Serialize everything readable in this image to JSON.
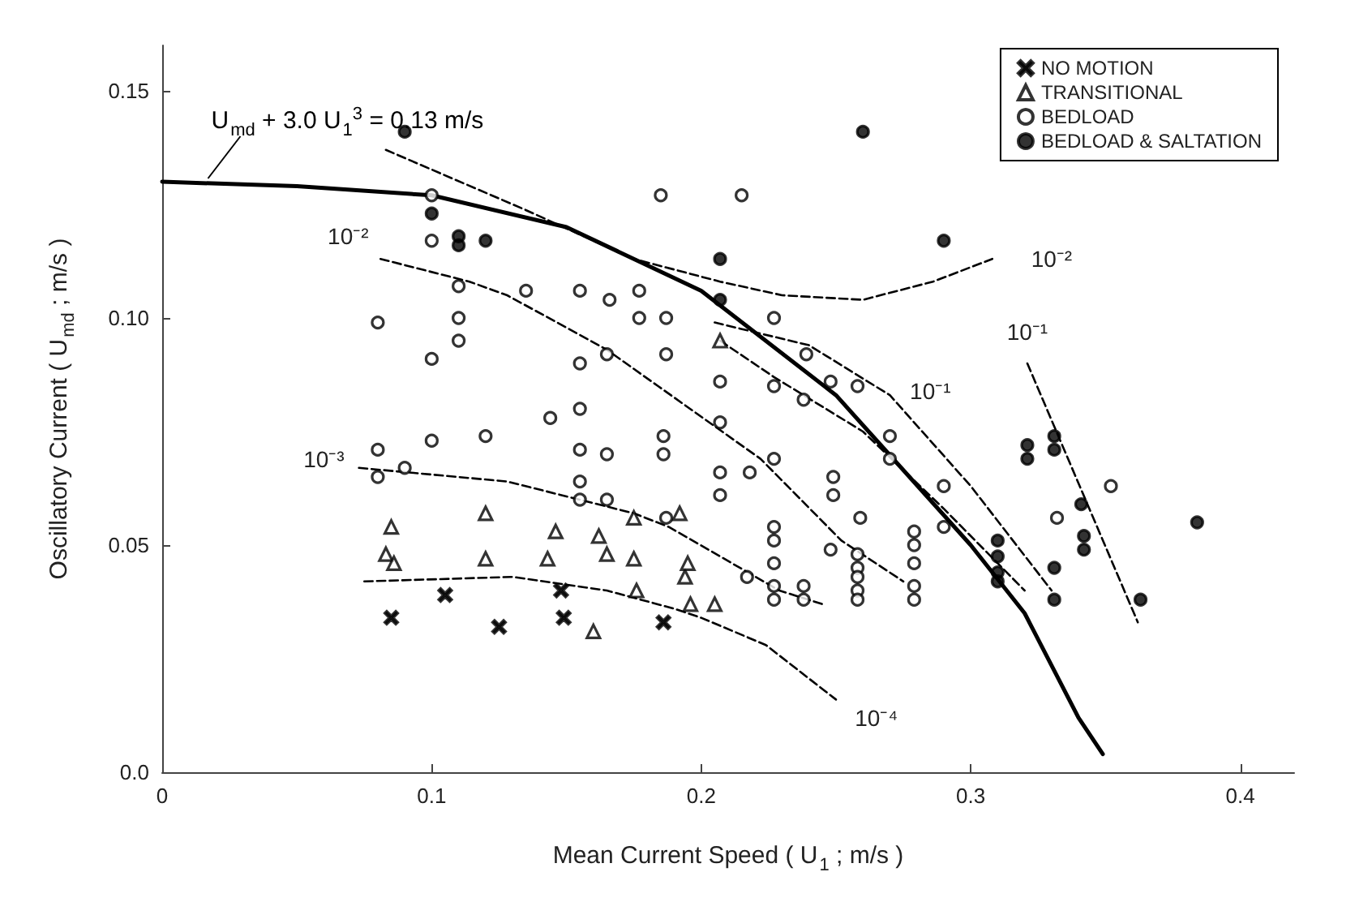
{
  "chart_data": {
    "type": "scatter",
    "xlabel": "Mean Current Speed ( U$_{1}$ ; m/s )",
    "ylabel": "Oscillatory Current ( U$_{md}$ ; m/s )",
    "xlim": [
      0,
      0.42
    ],
    "xticks": [
      0,
      0.1,
      0.2,
      0.3,
      0.4
    ],
    "ylim": [
      0,
      0.16
    ],
    "yticks": [
      {
        "value": 0,
        "label": "0.0"
      },
      0.05,
      {
        "value": 0.1,
        "label": "0.10"
      },
      0.15
    ],
    "grid": false,
    "legend": "top right",
    "series": [
      {
        "name": "NO MOTION",
        "marker": "cross",
        "color": "#000000",
        "x": [
          0.085,
          0.105,
          0.125,
          0.148,
          0.149,
          0.186
        ],
        "values": [
          0.034,
          0.039,
          0.032,
          0.04,
          0.034,
          0.033
        ]
      },
      {
        "name": "TRANSITIONAL",
        "marker": "triangle",
        "color": "#ffffff",
        "x": [
          0.085,
          0.083,
          0.086,
          0.12,
          0.12,
          0.143,
          0.146,
          0.16,
          0.162,
          0.165,
          0.175,
          0.175,
          0.176,
          0.192,
          0.194,
          0.195,
          0.196,
          0.205,
          0.207
        ],
        "values": [
          0.054,
          0.048,
          0.046,
          0.057,
          0.047,
          0.047,
          0.053,
          0.031,
          0.052,
          0.048,
          0.056,
          0.047,
          0.04,
          0.057,
          0.043,
          0.046,
          0.037,
          0.037,
          0.095
        ]
      },
      {
        "name": "BEDLOAD",
        "marker": "circle",
        "color": "#ffffff",
        "x": [
          0.1,
          0.1,
          0.11,
          0.08,
          0.11,
          0.11,
          0.1,
          0.08,
          0.1,
          0.12,
          0.08,
          0.09,
          0.185,
          0.215,
          0.135,
          0.155,
          0.166,
          0.177,
          0.177,
          0.187,
          0.187,
          0.155,
          0.165,
          0.207,
          0.227,
          0.227,
          0.144,
          0.155,
          0.207,
          0.155,
          0.165,
          0.186,
          0.186,
          0.207,
          0.218,
          0.227,
          0.155,
          0.155,
          0.165,
          0.207,
          0.187,
          0.217,
          0.227,
          0.227,
          0.227,
          0.227,
          0.227,
          0.239,
          0.248,
          0.258,
          0.238,
          0.27,
          0.27,
          0.249,
          0.249,
          0.29,
          0.259,
          0.29,
          0.248,
          0.258,
          0.258,
          0.258,
          0.258,
          0.258,
          0.238,
          0.238,
          0.279,
          0.279,
          0.279,
          0.279,
          0.279,
          0.332,
          0.352
        ],
        "values": [
          0.127,
          0.117,
          0.107,
          0.099,
          0.1,
          0.095,
          0.091,
          0.071,
          0.073,
          0.074,
          0.065,
          0.067,
          0.127,
          0.127,
          0.106,
          0.106,
          0.104,
          0.106,
          0.1,
          0.1,
          0.092,
          0.09,
          0.092,
          0.086,
          0.1,
          0.085,
          0.078,
          0.08,
          0.077,
          0.071,
          0.07,
          0.074,
          0.07,
          0.066,
          0.066,
          0.069,
          0.064,
          0.06,
          0.06,
          0.061,
          0.056,
          0.043,
          0.054,
          0.051,
          0.046,
          0.041,
          0.038,
          0.092,
          0.086,
          0.085,
          0.082,
          0.074,
          0.069,
          0.065,
          0.061,
          0.063,
          0.056,
          0.054,
          0.049,
          0.048,
          0.045,
          0.043,
          0.04,
          0.038,
          0.041,
          0.038,
          0.053,
          0.05,
          0.046,
          0.041,
          0.038,
          0.056,
          0.063
        ]
      },
      {
        "name": "BEDLOAD & SALTATION",
        "marker": "circle",
        "color": "#000000",
        "x": [
          0.09,
          0.1,
          0.11,
          0.11,
          0.12,
          0.207,
          0.207,
          0.26,
          0.29,
          0.321,
          0.321,
          0.331,
          0.331,
          0.341,
          0.342,
          0.342,
          0.31,
          0.31,
          0.31,
          0.31,
          0.331,
          0.331,
          0.363,
          0.384
        ],
        "values": [
          0.141,
          0.123,
          0.118,
          0.116,
          0.117,
          0.113,
          0.104,
          0.141,
          0.117,
          0.072,
          0.069,
          0.074,
          0.071,
          0.059,
          0.052,
          0.049,
          0.051,
          0.0475,
          0.044,
          0.042,
          0.045,
          0.038,
          0.038,
          0.055
        ]
      },
      {
        "type": "line",
        "marker": "none",
        "line_style": "solid",
        "color": "#000000",
        "x": [
          0,
          0.05,
          0.1,
          0.15,
          0.2,
          0.25,
          0.3,
          0.32,
          0.34,
          0.349
        ],
        "values": [
          0.13,
          0.129,
          0.127,
          0.12,
          0.106,
          0.083,
          0.05,
          0.035,
          0.012,
          0.004
        ]
      },
      {
        "type": "line",
        "marker": "none",
        "line_style": "dashed",
        "color": "#000000",
        "x": [
          0.083,
          0.134,
          0.175,
          0.207,
          0.23,
          0.26,
          0.286,
          0.308
        ],
        "values": [
          0.137,
          0.124,
          0.113,
          0.108,
          0.105,
          0.104,
          0.108,
          0.113
        ]
      },
      {
        "type": "line",
        "marker": "none",
        "line_style": "dashed",
        "color": "#000000",
        "x": [
          0.081,
          0.114,
          0.128,
          0.165,
          0.184,
          0.222,
          0.252,
          0.275
        ],
        "values": [
          0.113,
          0.108,
          0.105,
          0.093,
          0.085,
          0.069,
          0.051,
          0.042
        ]
      },
      {
        "type": "line",
        "marker": "none",
        "line_style": "dashed",
        "color": "#000000",
        "x": [
          0.205,
          0.24,
          0.27,
          0.3,
          0.33
        ],
        "values": [
          0.099,
          0.094,
          0.083,
          0.063,
          0.04
        ]
      },
      {
        "type": "line",
        "marker": "none",
        "line_style": "dashed",
        "color": "#000000",
        "x": [
          0.207,
          0.227,
          0.26,
          0.29,
          0.32
        ],
        "values": [
          0.095,
          0.087,
          0.075,
          0.058,
          0.04
        ]
      },
      {
        "type": "line",
        "marker": "none",
        "line_style": "dashed",
        "color": "#000000",
        "x": [
          0.321,
          0.362
        ],
        "values": [
          0.09,
          0.033
        ]
      },
      {
        "type": "line",
        "marker": "none",
        "line_style": "dashed",
        "color": "#000000",
        "x": [
          0.073,
          0.128,
          0.175,
          0.188,
          0.229,
          0.245
        ],
        "values": [
          0.067,
          0.064,
          0.057,
          0.054,
          0.04,
          0.037
        ]
      },
      {
        "type": "line",
        "marker": "none",
        "line_style": "dashed",
        "color": "#000000",
        "x": [
          0.075,
          0.13,
          0.165,
          0.19,
          0.2,
          0.224,
          0.25
        ],
        "values": [
          0.042,
          0.043,
          0.04,
          0.036,
          0.034,
          0.028,
          0.016
        ]
      }
    ],
    "annotations": [
      {
        "text": "U$_{md}$ + 3.0 U$_{1}$$^{3}$ = 0.13 m/s",
        "x": 0.017,
        "y": 0.13
      },
      {
        "text": "10⁻²",
        "x": 0.069,
        "y": 0.118
      },
      {
        "text": "10⁻²",
        "x": 0.33,
        "y": 0.113
      },
      {
        "text": "10⁻³",
        "x": 0.06,
        "y": 0.069
      },
      {
        "text": "10⁻¹",
        "x": 0.285,
        "y": 0.084
      },
      {
        "text": "10⁻¹",
        "x": 0.321,
        "y": 0.097
      },
      {
        "text": "10⁻⁴",
        "x": 0.265,
        "y": 0.012
      }
    ]
  }
}
